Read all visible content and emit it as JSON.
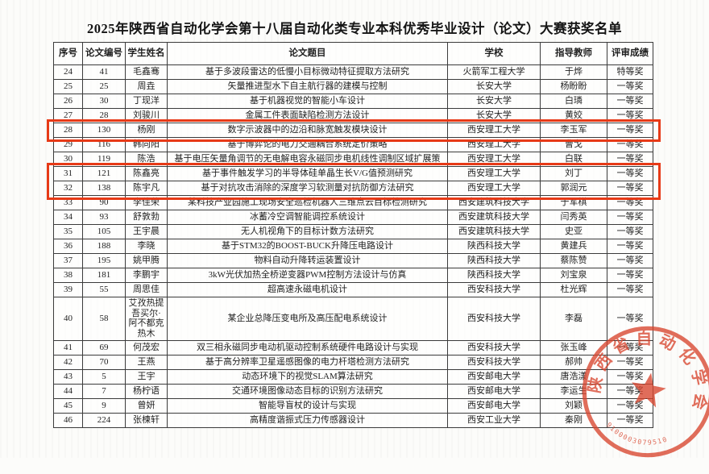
{
  "page": {
    "title": "2025年陕西省自动化学会第十八届自动化类专业本科优秀毕业设计（论文）大赛获奖名单"
  },
  "table": {
    "columns": [
      "序号",
      "论文编号",
      "学生姓名",
      "论文题目",
      "学校",
      "指导教师",
      "评审成绩"
    ],
    "rows": [
      [
        "24",
        "41",
        "毛鑫骞",
        "基于多波段雷达的低慢小目标微动特征提取方法研究",
        "火箭军工程大学",
        "于烨",
        "特等奖"
      ],
      [
        "25",
        "25",
        "周垚",
        "矢量推进型水下自主航行器的建模与控制",
        "长安大学",
        "杨盼盼",
        "一等奖"
      ],
      [
        "26",
        "30",
        "丁现洋",
        "基于机器视觉的智能小车设计",
        "长安大学",
        "白璘",
        "一等奖"
      ],
      [
        "27",
        "28",
        "刘骏川",
        "金属工件表面缺陷检测方法设计",
        "长安大学",
        "黄姣",
        "一等奖"
      ],
      [
        "28",
        "130",
        "杨刚",
        "数字示波器中的边沿和脉宽触发模块设计",
        "西安理工大学",
        "李玉军",
        "一等奖"
      ],
      [
        "29",
        "116",
        "韩向阳",
        "基于博弈论的电力交通耦合系统定价策略",
        "西安理工大学",
        "曹戈",
        "一等奖"
      ],
      [
        "30",
        "119",
        "陈浩",
        "基于电压矢量角调节的无电解电容永磁同步电机线性调制区域扩展策",
        "西安理工大学",
        "白联",
        "一等奖"
      ],
      [
        "31",
        "121",
        "陈鑫亮",
        "基于事件触发学习的半导体硅单晶生长V/G值预测研究",
        "西安理工大学",
        "刘丁",
        "一等奖"
      ],
      [
        "32",
        "138",
        "陈宇凡",
        "基于对抗攻击消除的深度学习软测量对抗防御方法研究",
        "西安理工大学",
        "郭润元",
        "一等奖"
      ],
      [
        "33",
        "90",
        "李佳荣",
        "某科技产业园施工现场安全巡检机器人三维点云目标检测研究",
        "西安建筑科技大学",
        "于军棋",
        "一等奖"
      ],
      [
        "34",
        "93",
        "舒敦勃",
        "冰蓄冷空调智能调控系统设计",
        "西安建筑科技大学",
        "闫秀英",
        "一等奖"
      ],
      [
        "35",
        "105",
        "王宇晨",
        "无人机视角下的目标计数方法研究",
        "西安建筑科技大学",
        "史亚",
        "一等奖"
      ],
      [
        "36",
        "188",
        "李晓",
        "基于STM32的BOOST-BUCK升降压电路设计",
        "陕西科技大学",
        "黄建兵",
        "一等奖"
      ],
      [
        "37",
        "195",
        "姚甲腾",
        "物料自动升降转运装置设计",
        "陕西科技大学",
        "蔡陈赞",
        "一等奖"
      ],
      [
        "38",
        "181",
        "李鹏宇",
        "3kW光伏加热全桥逆变器PWM控制方法设计与仿真",
        "陕西科技大学",
        "刘宝泉",
        "一等奖"
      ],
      [
        "39",
        "55",
        "周思佳",
        "超高速永磁电机设计",
        "西安科技大学",
        "杜光辉",
        "一等奖"
      ],
      [
        "40",
        "58",
        "艾孜热提吾买尔·阿不都克热木",
        "某企业总降压变电所及高压配电系统设计",
        "西安科技大学",
        "李磊",
        "一等奖"
      ],
      [
        "41",
        "69",
        "何茂宏",
        "双三相永磁同步电动机驱动控制系统硬件电路设计与实现",
        "西安科技大学",
        "张玉峰",
        "一等奖"
      ],
      [
        "42",
        "70",
        "王燕",
        "基于高分辨率卫星遥感图像的电力杆塔检测方法研究",
        "西安科技大学",
        "郝帅",
        "一等奖"
      ],
      [
        "43",
        "5",
        "王宇",
        "动态环境下的视觉SLAM算法研究",
        "西安邮电大学",
        "唐浩漾",
        "一等奖"
      ],
      [
        "44",
        "7",
        "杨柠语",
        "交通环境图像动态目标的识别方法研究",
        "西安邮电大学",
        "李运生",
        "一等奖"
      ],
      [
        "45",
        "9",
        "曾妍",
        "智能导盲杖的设计与实现",
        "西安邮电大学",
        "刘颖",
        "一等奖"
      ],
      [
        "46",
        "224",
        "张楝轩",
        "高精度谐振式压力传感器设计",
        "西安工业大学",
        "秦刚",
        "一等奖"
      ]
    ]
  },
  "annotations": {
    "box_color": "#e73a17",
    "boxed_row_groups": [
      [
        "28"
      ],
      [
        "31",
        "32"
      ]
    ]
  },
  "seal": {
    "arc_text": "陕西省自动化学会",
    "number": "9100003079510",
    "color": "#d8452e"
  }
}
